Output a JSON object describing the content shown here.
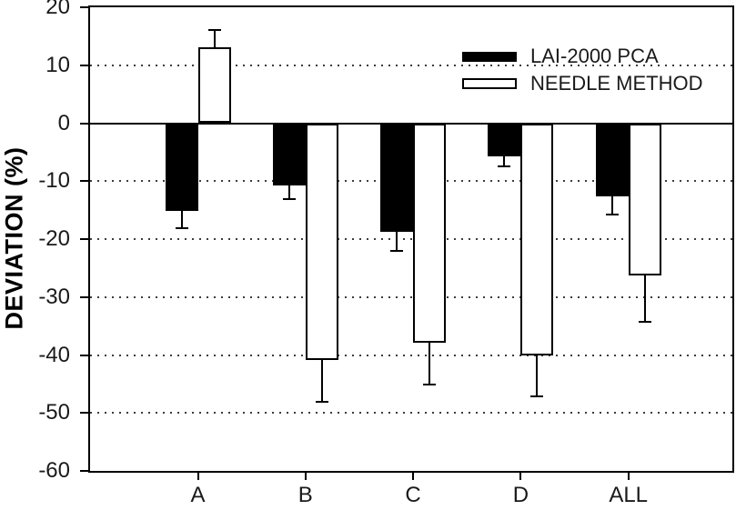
{
  "chart_data": {
    "type": "bar",
    "title": "",
    "xlabel": "",
    "ylabel": "DEVIATION (%)",
    "ylim": [
      -60,
      20
    ],
    "yticks": [
      20,
      10,
      0,
      -10,
      -20,
      -30,
      -40,
      -50,
      -60
    ],
    "grid": "horizontal dotted lines at every 10 units except 0; solid line at 0",
    "legend_position": "upper right inside plot",
    "categories": [
      "A",
      "B",
      "C",
      "D",
      "ALL"
    ],
    "series": [
      {
        "name": "LAI-2000 PCA",
        "fill": "#000000",
        "values": [
          -15.1,
          -10.8,
          -18.7,
          -5.7,
          -12.6
        ],
        "errors": [
          3.0,
          2.3,
          3.4,
          1.7,
          3.1
        ]
      },
      {
        "name": "NEEDLE METHOD",
        "fill": "#ffffff",
        "values": [
          13.1,
          -40.8,
          -37.9,
          -40.0,
          -26.3
        ],
        "errors": [
          3.2,
          7.2,
          7.2,
          7.2,
          7.9
        ]
      }
    ]
  },
  "colors": {
    "axis": "#000000",
    "grid_dot": "#3c3c3c",
    "text": "#1a1a1a",
    "background": "#ffffff",
    "bar_series_1": "#000000",
    "bar_series_2": "#ffffff"
  }
}
